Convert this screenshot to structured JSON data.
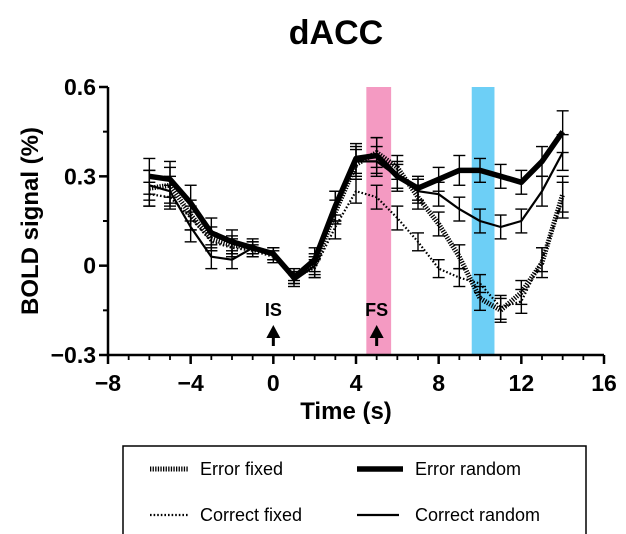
{
  "chart_data": {
    "type": "line",
    "title": "dACC",
    "xlabel": "Time (s)",
    "ylabel": "BOLD signal (%)",
    "xlim": [
      -8,
      16
    ],
    "ylim": [
      -0.3,
      0.6
    ],
    "xticks": [
      -8,
      -4,
      0,
      4,
      8,
      12,
      16
    ],
    "xtick_labels": [
      "−8",
      "−4",
      "0",
      "4",
      "8",
      "12",
      "16"
    ],
    "yticks": [
      -0.3,
      0,
      0.3,
      0.6
    ],
    "ytick_labels": [
      "−0.3",
      "0",
      "0.3",
      "0.6"
    ],
    "grid": false,
    "legend_position": "bottom",
    "shaded_regions": [
      {
        "x": [
          4.5,
          5.7
        ],
        "color": "#f49ac2"
      },
      {
        "x": [
          9.6,
          10.7
        ],
        "color": "#6dcff6"
      }
    ],
    "annotations": [
      {
        "text": "IS",
        "x": 0
      },
      {
        "text": "FS",
        "x": 5
      }
    ],
    "x": [
      -6,
      -5,
      -4,
      -3,
      -2,
      -1,
      0,
      1,
      2,
      3,
      4,
      5,
      6,
      7,
      8,
      9,
      10,
      11,
      12,
      13,
      14
    ],
    "series": [
      {
        "name": "Error fixed",
        "style": "dense-dash",
        "values": [
          0.26,
          0.27,
          0.17,
          0.09,
          0.07,
          0.06,
          0.04,
          -0.04,
          0.0,
          0.18,
          0.34,
          0.38,
          0.33,
          0.23,
          0.14,
          0.03,
          -0.11,
          -0.15,
          -0.09,
          0.01,
          0.24
        ],
        "errors": [
          0.06,
          0.06,
          0.05,
          0.04,
          0.03,
          0.02,
          0.02,
          0.02,
          0.04,
          0.04,
          0.05,
          0.05,
          0.04,
          0.04,
          0.04,
          0.04,
          0.04,
          0.04,
          0.04,
          0.05,
          0.06
        ]
      },
      {
        "name": "Error random",
        "style": "thick",
        "values": [
          0.3,
          0.29,
          0.21,
          0.11,
          0.08,
          0.06,
          0.04,
          -0.04,
          0.02,
          0.2,
          0.36,
          0.37,
          0.3,
          0.26,
          0.29,
          0.32,
          0.32,
          0.3,
          0.28,
          0.35,
          0.45
        ],
        "errors": [
          0.06,
          0.06,
          0.06,
          0.05,
          0.04,
          0.03,
          0.02,
          0.02,
          0.04,
          0.05,
          0.05,
          0.06,
          0.05,
          0.04,
          0.04,
          0.05,
          0.04,
          0.04,
          0.04,
          0.05,
          0.07
        ]
      },
      {
        "name": "Correct fixed",
        "style": "dotted",
        "values": [
          0.24,
          0.23,
          0.16,
          0.08,
          0.06,
          0.05,
          0.03,
          -0.03,
          -0.01,
          0.13,
          0.25,
          0.23,
          0.16,
          0.08,
          -0.01,
          -0.04,
          -0.06,
          -0.14,
          -0.12,
          0.02,
          0.22
        ],
        "errors": [
          0.04,
          0.04,
          0.04,
          0.03,
          0.03,
          0.02,
          0.02,
          0.02,
          0.03,
          0.04,
          0.04,
          0.04,
          0.04,
          0.03,
          0.03,
          0.03,
          0.03,
          0.04,
          0.04,
          0.04,
          0.06
        ]
      },
      {
        "name": "Correct random",
        "style": "solid",
        "values": [
          0.27,
          0.25,
          0.13,
          0.03,
          0.02,
          0.06,
          0.04,
          -0.05,
          0.0,
          0.2,
          0.35,
          0.35,
          0.3,
          0.25,
          0.24,
          0.19,
          0.15,
          0.13,
          0.15,
          0.25,
          0.38
        ],
        "errors": [
          0.05,
          0.05,
          0.05,
          0.04,
          0.03,
          0.02,
          0.02,
          0.02,
          0.03,
          0.05,
          0.05,
          0.05,
          0.04,
          0.04,
          0.04,
          0.04,
          0.04,
          0.04,
          0.04,
          0.05,
          0.06
        ]
      }
    ]
  }
}
